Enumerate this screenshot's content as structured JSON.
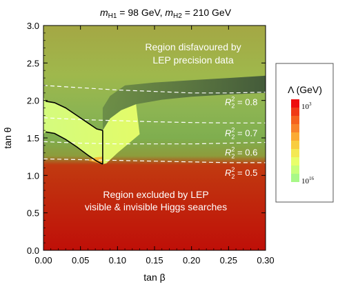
{
  "chart_data": {
    "type": "area",
    "title_parts": {
      "m1": "m",
      "m1_sub": "H1",
      "m1_value": " = 98 GeV, ",
      "m2": "m",
      "m2_sub": "H2",
      "m2_value": " = 210 GeV"
    },
    "xlabel": "tan β",
    "ylabel": "tan θ",
    "xlim": [
      0,
      0.3
    ],
    "ylim": [
      0,
      3.0
    ],
    "x_ticks": [
      "0.00",
      "0.05",
      "0.10",
      "0.15",
      "0.20",
      "0.25",
      "0.30"
    ],
    "x_tick_values": [
      0,
      0.05,
      0.1,
      0.15,
      0.2,
      0.25,
      0.3
    ],
    "y_ticks": [
      "0.0",
      "0.5",
      "1.0",
      "1.5",
      "2.0",
      "2.5",
      "3.0"
    ],
    "y_tick_values": [
      0,
      0.5,
      1.0,
      1.5,
      2.0,
      2.5,
      3.0
    ],
    "annotations": {
      "top_region_line1": "Region disfavoured by",
      "top_region_line2": "LEP precision data",
      "bottom_region_line1": "Region excluded by LEP",
      "bottom_region_line2": "visible & invisible Higgs searches"
    },
    "contours": [
      {
        "r_label": "R",
        "r_sub": "2",
        "r_sup": "2",
        "value_text": " = 0.8",
        "value": 0.8,
        "points": [
          [
            0.0,
            2.2
          ],
          [
            0.05,
            2.17
          ],
          [
            0.1,
            2.14
          ],
          [
            0.15,
            2.12
          ],
          [
            0.2,
            2.1
          ],
          [
            0.25,
            2.1
          ],
          [
            0.3,
            2.11
          ]
        ]
      },
      {
        "r_label": "R",
        "r_sub": "2",
        "r_sup": "2",
        "value_text": " = 0.7",
        "value": 0.7,
        "points": [
          [
            0.0,
            1.77
          ],
          [
            0.05,
            1.745
          ],
          [
            0.1,
            1.73
          ],
          [
            0.15,
            1.715
          ],
          [
            0.2,
            1.705
          ],
          [
            0.25,
            1.7
          ],
          [
            0.3,
            1.7
          ]
        ]
      },
      {
        "r_label": "R",
        "r_sub": "2",
        "r_sup": "2",
        "value_text": " = 0.6",
        "value": 0.6,
        "points": [
          [
            0.0,
            1.45
          ],
          [
            0.05,
            1.43
          ],
          [
            0.1,
            1.42
          ],
          [
            0.15,
            1.42
          ],
          [
            0.2,
            1.42
          ],
          [
            0.25,
            1.43
          ],
          [
            0.3,
            1.44
          ]
        ]
      },
      {
        "r_label": "R",
        "r_sub": "2",
        "r_sup": "2",
        "value_text": " = 0.5",
        "value": 0.5,
        "points": [
          [
            0.0,
            1.22
          ],
          [
            0.05,
            1.21
          ],
          [
            0.1,
            1.2
          ],
          [
            0.15,
            1.19
          ],
          [
            0.2,
            1.18
          ],
          [
            0.25,
            1.17
          ],
          [
            0.3,
            1.17
          ]
        ]
      }
    ],
    "boundary_curves": [
      {
        "points": [
          [
            0.003,
            1.99
          ],
          [
            0.015,
            1.97
          ],
          [
            0.03,
            1.9
          ],
          [
            0.045,
            1.8
          ],
          [
            0.06,
            1.7
          ],
          [
            0.072,
            1.62
          ],
          [
            0.08,
            1.6
          ]
        ]
      },
      {
        "points": [
          [
            0.003,
            1.58
          ],
          [
            0.015,
            1.56
          ],
          [
            0.03,
            1.48
          ],
          [
            0.045,
            1.38
          ],
          [
            0.06,
            1.27
          ],
          [
            0.072,
            1.19
          ],
          [
            0.08,
            1.15
          ]
        ]
      },
      {
        "points": [
          [
            0.08,
            1.15
          ],
          [
            0.08,
            1.6
          ]
        ]
      }
    ],
    "shaded_region_points": [
      [
        0.08,
        1.6
      ],
      [
        0.09,
        1.76
      ],
      [
        0.105,
        1.87
      ],
      [
        0.125,
        1.95
      ],
      [
        0.16,
        2.01
      ],
      [
        0.2,
        2.05
      ],
      [
        0.25,
        2.08
      ],
      [
        0.3,
        2.1
      ],
      [
        0.3,
        2.33
      ],
      [
        0.25,
        2.3
      ],
      [
        0.2,
        2.27
      ],
      [
        0.15,
        2.24
      ],
      [
        0.11,
        2.2
      ],
      [
        0.09,
        2.06
      ],
      [
        0.08,
        1.9
      ]
    ],
    "colors": {
      "top": "#a2aa46",
      "mid_upper": "#9bb64c",
      "green": "#88b453",
      "light": "#dcff78",
      "red": "#c4100a",
      "dark_shade": "#47603f",
      "contour": "#ffffff",
      "boundary": "#000000"
    },
    "legend": {
      "title": "Λ (GeV)",
      "top_label_base": "10",
      "top_label_exp": "3",
      "bottom_label_base": "10",
      "bottom_label_exp": "16",
      "swatches": [
        "#ee0e0e",
        "#f03a16",
        "#f5621e",
        "#f8832a",
        "#fbaa33",
        "#f8cd40",
        "#f4e953",
        "#e8ff6a",
        "#c8ff7a",
        "#a8f887"
      ]
    }
  }
}
